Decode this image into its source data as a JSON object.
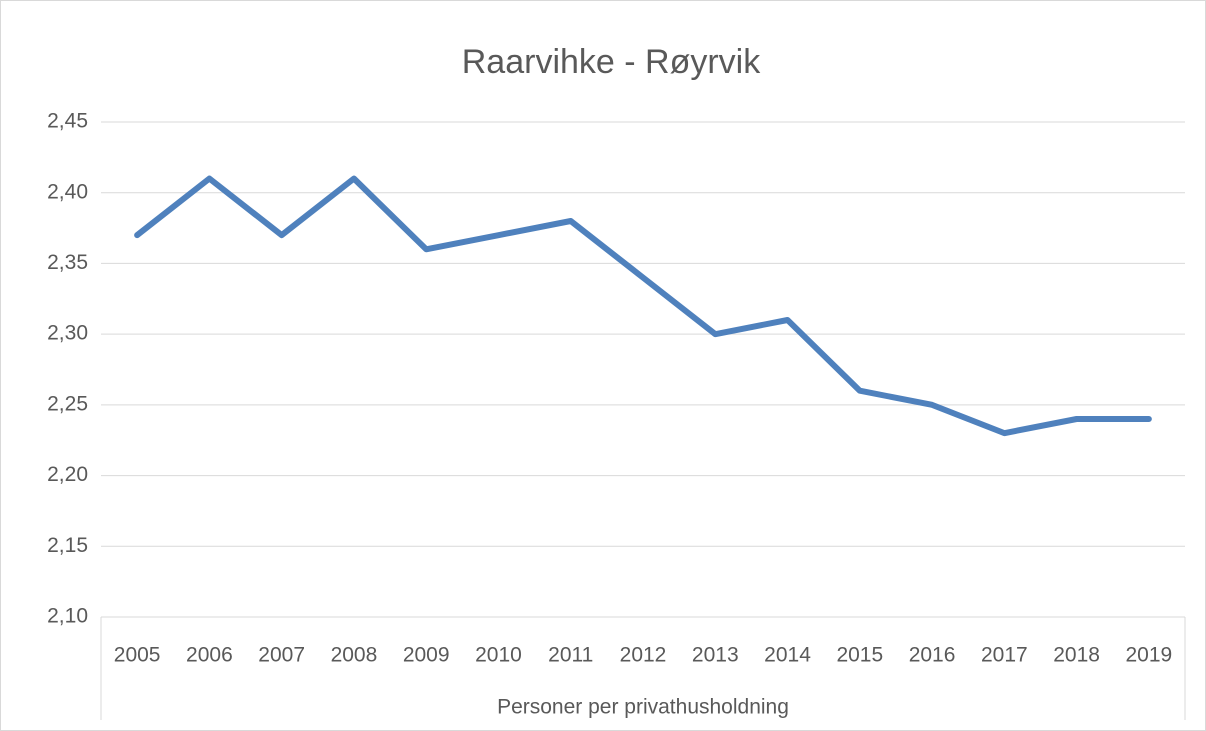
{
  "chart_data": {
    "type": "line",
    "title": "Raarvihke - Røyrvik",
    "x_label": "Personer per privathusholdning",
    "categories": [
      "2005",
      "2006",
      "2007",
      "2008",
      "2009",
      "2010",
      "2011",
      "2012",
      "2013",
      "2014",
      "2015",
      "2016",
      "2017",
      "2018",
      "2019"
    ],
    "series": [
      {
        "color": "#4f81bd",
        "values": [
          2.37,
          2.41,
          2.37,
          2.41,
          2.36,
          2.37,
          2.38,
          2.34,
          2.3,
          2.31,
          2.26,
          2.25,
          2.23,
          2.24,
          2.24
        ]
      }
    ],
    "ylim": [
      2.1,
      2.45
    ],
    "yticks": [
      {
        "value": 2.1,
        "label": "2,10"
      },
      {
        "value": 2.15,
        "label": "2,15"
      },
      {
        "value": 2.2,
        "label": "2,20"
      },
      {
        "value": 2.25,
        "label": "2,25"
      },
      {
        "value": 2.3,
        "label": "2,30"
      },
      {
        "value": 2.35,
        "label": "2,35"
      },
      {
        "value": 2.4,
        "label": "2,40"
      },
      {
        "value": 2.45,
        "label": "2,45"
      }
    ],
    "grid": true
  }
}
